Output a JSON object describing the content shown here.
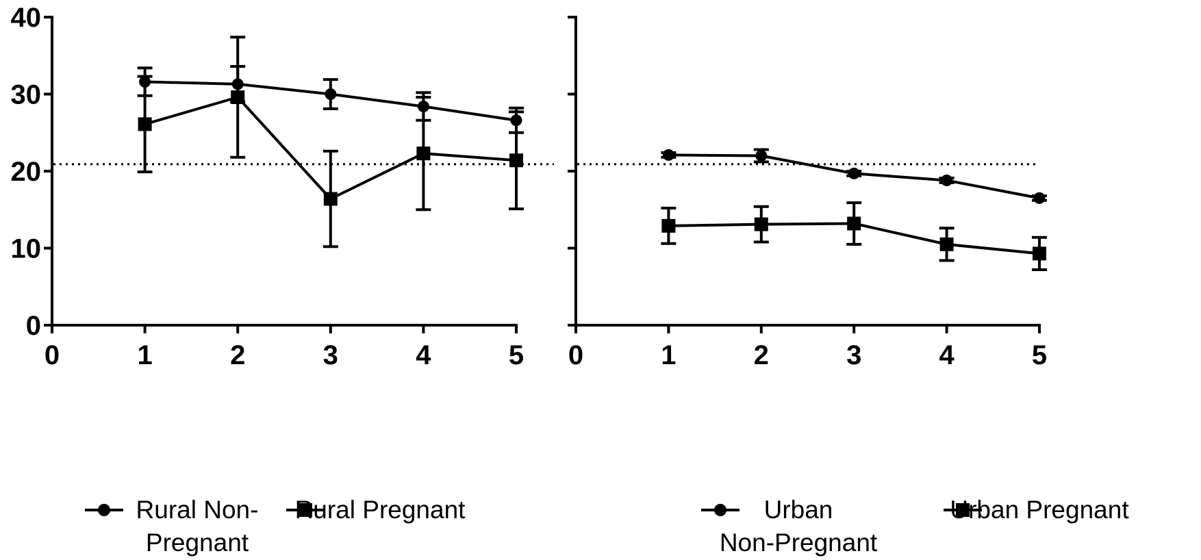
{
  "chart_data": [
    {
      "type": "line",
      "xlim": [
        0,
        5
      ],
      "ylim": [
        0,
        40
      ],
      "x_ticks": [
        "0",
        "1",
        "2",
        "3",
        "4",
        "5"
      ],
      "y_ticks": [
        "0",
        "10",
        "20",
        "30",
        "40"
      ],
      "reference_line": {
        "y": 20.9,
        "style": "dotted"
      },
      "legend_placement": "bottom",
      "series": [
        {
          "name": "Rural Non-Pregnant",
          "marker": "circle",
          "x": [
            1,
            2,
            3,
            4,
            5
          ],
          "values": [
            31.6,
            31.3,
            30.0,
            28.4,
            26.6
          ],
          "error": [
            1.8,
            2.3,
            1.9,
            1.8,
            1.6
          ]
        },
        {
          "name": "Rural Pregnant",
          "marker": "square",
          "x": [
            1,
            2,
            3,
            4,
            5
          ],
          "values": [
            26.1,
            29.6,
            16.4,
            22.3,
            21.4
          ],
          "error": [
            6.2,
            7.8,
            6.2,
            7.3,
            6.3
          ]
        }
      ]
    },
    {
      "type": "line",
      "xlim": [
        0,
        5
      ],
      "ylim": [
        0,
        40
      ],
      "x_ticks": [
        "0",
        "1",
        "2",
        "3",
        "4",
        "5"
      ],
      "y_ticks": [],
      "reference_line": {
        "y": 20.9,
        "style": "dotted"
      },
      "legend_placement": "bottom",
      "series": [
        {
          "name": "Urban Non-Pregnant",
          "marker": "circle",
          "x": [
            1,
            2,
            3,
            4,
            5
          ],
          "values": [
            22.1,
            22.0,
            19.7,
            18.8,
            16.5
          ],
          "error": [
            0.3,
            0.8,
            0.3,
            0.3,
            0.3
          ]
        },
        {
          "name": "Urban Pregnant",
          "marker": "square",
          "x": [
            1,
            2,
            3,
            4,
            5
          ],
          "values": [
            12.9,
            13.1,
            13.2,
            10.5,
            9.3
          ],
          "error": [
            2.3,
            2.3,
            2.7,
            2.1,
            2.1
          ]
        }
      ]
    }
  ],
  "legends": [
    {
      "items": [
        {
          "marker": "circle",
          "lines": [
            "Rural Non-",
            "Pregnant"
          ]
        },
        {
          "marker": "square",
          "lines": [
            "Rural Pregnant"
          ]
        }
      ]
    },
    {
      "items": [
        {
          "marker": "circle",
          "lines": [
            "Urban",
            "Non-Pregnant"
          ]
        },
        {
          "marker": "square",
          "lines": [
            "Urban Pregnant"
          ]
        }
      ]
    }
  ]
}
